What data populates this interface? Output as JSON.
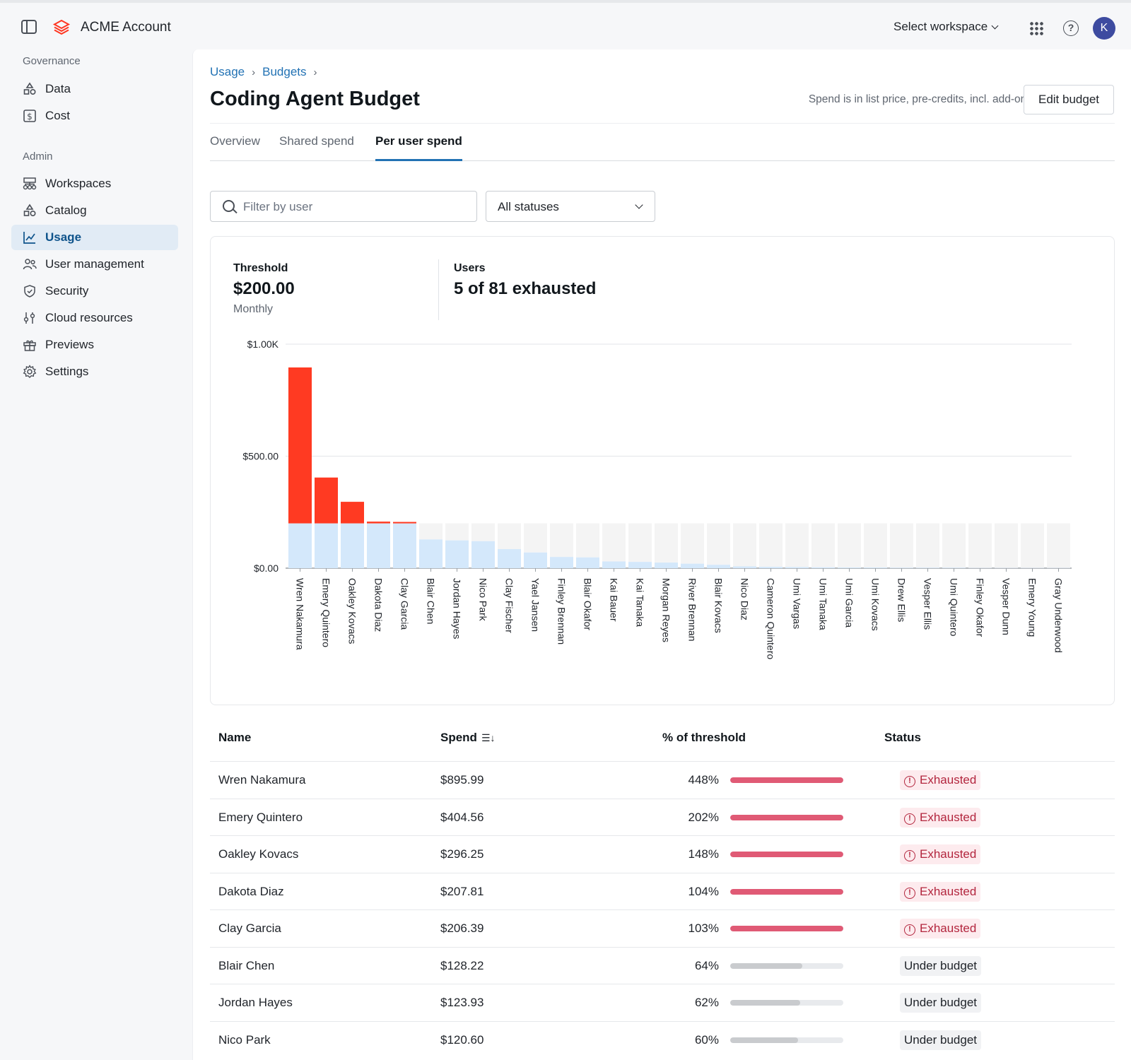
{
  "app": {
    "title": "ACME Account",
    "workspace_select": "Select workspace",
    "avatar_initial": "K"
  },
  "sidebar": {
    "sections": [
      {
        "title": "Governance",
        "items": [
          {
            "label": "Data",
            "icon": "shapes-icon"
          },
          {
            "label": "Cost",
            "icon": "dollar-icon"
          }
        ]
      },
      {
        "title": "Admin",
        "items": [
          {
            "label": "Workspaces",
            "icon": "workspaces-icon"
          },
          {
            "label": "Catalog",
            "icon": "catalog-icon"
          },
          {
            "label": "Usage",
            "icon": "chart-line-icon",
            "active": true
          },
          {
            "label": "User management",
            "icon": "users-icon"
          },
          {
            "label": "Security",
            "icon": "shield-icon"
          },
          {
            "label": "Cloud resources",
            "icon": "sliders-icon"
          },
          {
            "label": "Previews",
            "icon": "gift-icon"
          },
          {
            "label": "Settings",
            "icon": "gear-icon"
          }
        ]
      }
    ]
  },
  "breadcrumb": [
    "Usage",
    "Budgets"
  ],
  "page": {
    "title": "Coding Agent Budget",
    "spend_note": "Spend is in list price, pre-credits, incl. add-ons",
    "edit_button": "Edit budget"
  },
  "tabs": [
    {
      "label": "Overview"
    },
    {
      "label": "Shared spend"
    },
    {
      "label": "Per user spend",
      "active": true
    }
  ],
  "filters": {
    "search_placeholder": "Filter by user",
    "status_value": "All statuses"
  },
  "summary": {
    "threshold_label": "Threshold",
    "threshold_value": "$200.00",
    "threshold_period": "Monthly",
    "users_label": "Users",
    "users_value": "5 of 81 exhausted"
  },
  "colors": {
    "over": "#ff3a22",
    "under": "#d4e8fb",
    "remaining": "#f4f4f4",
    "bar_exhausted": "#e05a75",
    "bar_under": "#c9cbce",
    "accent": "#2272b4"
  },
  "chart_data": {
    "type": "bar",
    "stacked": true,
    "threshold": 200,
    "ylim": [
      0,
      1000
    ],
    "y_ticks": [
      "$0.00",
      "$500.00",
      "$1.00K"
    ],
    "y_tick_values": [
      0,
      500,
      1000
    ],
    "categories": [
      "Wren Nakamura",
      "Emery Quintero",
      "Oakley Kovacs",
      "Dakota Diaz",
      "Clay Garcia",
      "Blair Chen",
      "Jordan Hayes",
      "Nico Park",
      "Clay Fischer",
      "Yael Jansen",
      "Finley Brennan",
      "Blair Okafor",
      "Kai Bauer",
      "Kai Tanaka",
      "Morgan Reyes",
      "River Brennan",
      "Blair Kovacs",
      "Nico Diaz",
      "Cameron Quintero",
      "Umi Vargas",
      "Umi Tanaka",
      "Umi Garcia",
      "Umi Kovacs",
      "Drew Ellis",
      "Vesper Ellis",
      "Umi Quintero",
      "Finley Okafor",
      "Vesper Dunn",
      "Emery Young",
      "Gray Underwood"
    ],
    "values": [
      895.99,
      404.56,
      296.25,
      207.81,
      206.39,
      128.22,
      123.93,
      120.6,
      85,
      70,
      50,
      48,
      30,
      28,
      25,
      20,
      15,
      8,
      6,
      5,
      4,
      3,
      3,
      2,
      2,
      2,
      1,
      1,
      1,
      1
    ]
  },
  "table": {
    "headers": {
      "name": "Name",
      "spend": "Spend",
      "pct": "% of threshold",
      "status": "Status"
    },
    "rows": [
      {
        "name": "Wren Nakamura",
        "spend": "$895.99",
        "pct": "448%",
        "pct_value": 4.48,
        "status": "Exhausted"
      },
      {
        "name": "Emery Quintero",
        "spend": "$404.56",
        "pct": "202%",
        "pct_value": 2.02,
        "status": "Exhausted"
      },
      {
        "name": "Oakley Kovacs",
        "spend": "$296.25",
        "pct": "148%",
        "pct_value": 1.48,
        "status": "Exhausted"
      },
      {
        "name": "Dakota Diaz",
        "spend": "$207.81",
        "pct": "104%",
        "pct_value": 1.04,
        "status": "Exhausted"
      },
      {
        "name": "Clay Garcia",
        "spend": "$206.39",
        "pct": "103%",
        "pct_value": 1.03,
        "status": "Exhausted"
      },
      {
        "name": "Blair Chen",
        "spend": "$128.22",
        "pct": "64%",
        "pct_value": 0.64,
        "status": "Under budget"
      },
      {
        "name": "Jordan Hayes",
        "spend": "$123.93",
        "pct": "62%",
        "pct_value": 0.62,
        "status": "Under budget"
      },
      {
        "name": "Nico Park",
        "spend": "$120.60",
        "pct": "60%",
        "pct_value": 0.6,
        "status": "Under budget"
      }
    ]
  }
}
